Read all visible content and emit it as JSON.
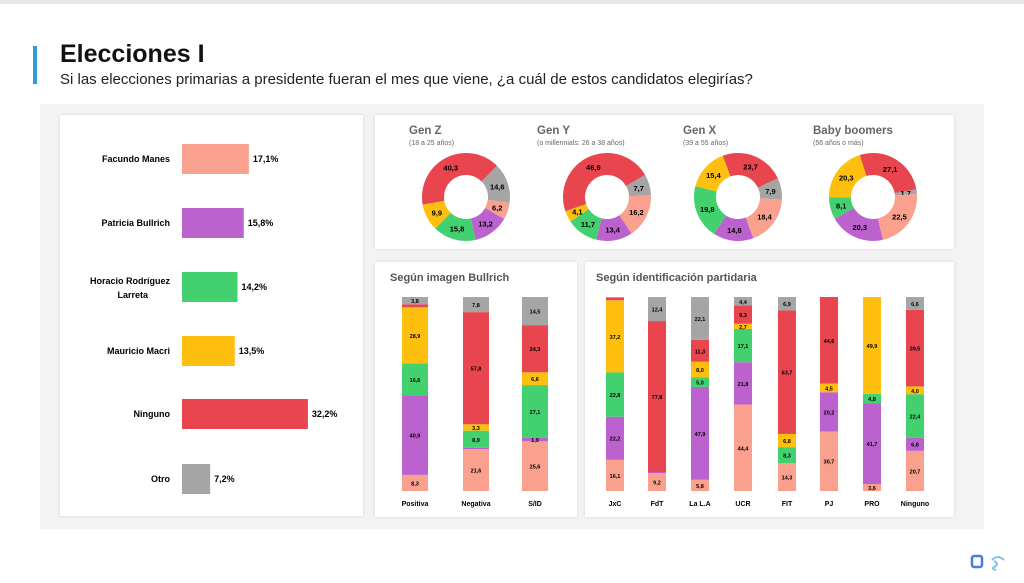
{
  "header": {
    "title": "Elecciones I",
    "subtitle": "Si las elecciones primarias a presidente fueran el mes que viene, ¿a cuál de estos candidatos elegirías?"
  },
  "colors": {
    "Facundo Manes": "#f9a08e",
    "Patricia Bullrich": "#bb62cf",
    "Horacio Rodríguez Larreta": "#43d16f",
    "Mauricio Macri": "#ffbf0e",
    "Ninguno": "#e8454e",
    "Otro": "#a5a5a5",
    "accent": "#2a9fd6"
  },
  "chart_data": [
    {
      "type": "bar",
      "orientation": "horizontal",
      "categories": [
        "Facundo Manes",
        "Patricia Bullrich",
        "Horacio Rodríguez Larreta",
        "Mauricio Macri",
        "Ninguno",
        "Otro"
      ],
      "values": [
        17.1,
        15.8,
        14.2,
        13.5,
        32.2,
        7.2
      ],
      "labels": [
        "17,1%",
        "15,8%",
        "14,2%",
        "13,5%",
        "32,2%",
        "7,2%"
      ]
    },
    {
      "type": "pie",
      "donut": true,
      "series_order": [
        "Facundo Manes",
        "Patricia Bullrich",
        "Horacio Rodríguez Larreta",
        "Mauricio Macri",
        "Ninguno",
        "Otro"
      ],
      "charts": [
        {
          "title": "Gen Z",
          "subtitle": "(18 a 25 años)",
          "values": [
            6.2,
            13.2,
            15.8,
            9.9,
            40.3,
            14.6
          ],
          "labels": [
            "6,2",
            "13,2",
            "15,8",
            "9,9",
            "40,3",
            "14,6"
          ]
        },
        {
          "title": "Gen Y",
          "subtitle": "(o millennials: 26 a 38 años)",
          "values": [
            16.2,
            13.4,
            11.7,
            4.1,
            46.9,
            7.7
          ],
          "labels": [
            "16,2",
            "13,4",
            "11,7",
            "4,1",
            "46,9",
            "7,7"
          ]
        },
        {
          "title": "Gen X",
          "subtitle": "(39 a 55 años)",
          "values": [
            18.4,
            14.8,
            19.8,
            15.4,
            23.7,
            7.9
          ],
          "labels": [
            "18,4",
            "14,8",
            "19,8",
            "15,4",
            "23,7",
            "7,9"
          ]
        },
        {
          "title": "Baby boomers",
          "subtitle": "(56 años o más)",
          "values": [
            22.5,
            20.3,
            8.1,
            20.3,
            27.1,
            1.7
          ],
          "labels": [
            "22,5",
            "20,3",
            "8,1",
            "20,3",
            "27,1",
            "1,7"
          ]
        }
      ]
    },
    {
      "type": "bar",
      "stacked": true,
      "title": "Según imagen Bullrich",
      "categories": [
        "Positiva",
        "Negativa",
        "S/ID"
      ],
      "series_order": [
        "Facundo Manes",
        "Patricia Bullrich",
        "Horacio Rodríguez Larreta",
        "Mauricio Macri",
        "Ninguno",
        "Otro"
      ],
      "values": [
        [
          8.3,
          40.9,
          16.6,
          28.9,
          1.5,
          3.8
        ],
        [
          21.6,
          0.6,
          8.9,
          3.3,
          57.8,
          7.8
        ],
        [
          25.6,
          1.9,
          27.1,
          6.6,
          24.3,
          14.5
        ]
      ],
      "labels": [
        [
          "8,3",
          "40,9",
          "16,6",
          "28,9",
          "",
          "3,8"
        ],
        [
          "21,6",
          "",
          "8,9",
          "3,3",
          "57,8",
          "7,8"
        ],
        [
          "25,6",
          "1,9",
          "27,1",
          "6,6",
          "24,3",
          "14,5"
        ]
      ]
    },
    {
      "type": "bar",
      "stacked": true,
      "title": "Según identificación partidaria",
      "categories": [
        "JxC",
        "FdT",
        "La L.A",
        "UCR",
        "FIT",
        "PJ",
        "PRO",
        "Ninguno"
      ],
      "series_order": [
        "Facundo Manes",
        "Patricia Bullrich",
        "Horacio Rodríguez Larreta",
        "Mauricio Macri",
        "Ninguno",
        "Otro"
      ],
      "values": [
        [
          16.1,
          22.2,
          22.8,
          37.2,
          1.2,
          0.5
        ],
        [
          9.2,
          0.6,
          0,
          0,
          77.8,
          12.4
        ],
        [
          5.8,
          47.9,
          5.0,
          8.0,
          11.3,
          22.1
        ],
        [
          44.4,
          21.8,
          17.1,
          2.7,
          9.3,
          4.4
        ],
        [
          14.3,
          0,
          8.3,
          6.8,
          63.7,
          6.9
        ],
        [
          30.7,
          20.2,
          0,
          4.5,
          44.6,
          0
        ],
        [
          3.6,
          41.7,
          4.8,
          49.9,
          0,
          0
        ],
        [
          20.7,
          6.8,
          22.4,
          4.0,
          39.5,
          6.6
        ]
      ],
      "labels": [
        [
          "16,1",
          "22,2",
          "22,8",
          "37,2",
          "",
          ""
        ],
        [
          "9,2",
          "",
          "",
          "",
          "77,8",
          "12,4"
        ],
        [
          "5,8",
          "47,9",
          "5,0",
          "8,0",
          "11,3",
          "22,1"
        ],
        [
          "44,4",
          "21,8",
          "17,1",
          "2,7",
          "9,3",
          "4,4"
        ],
        [
          "14,3",
          "",
          "8,3",
          "6,8",
          "63,7",
          "6,9"
        ],
        [
          "30,7",
          "20,2",
          "",
          "4,5",
          "44,6",
          ""
        ],
        [
          "3,6",
          "41,7",
          "4,8",
          "49,9",
          "",
          ""
        ],
        [
          "20,7",
          "6,8",
          "22,4",
          "4,0",
          "39,5",
          "6,6"
        ]
      ]
    }
  ]
}
